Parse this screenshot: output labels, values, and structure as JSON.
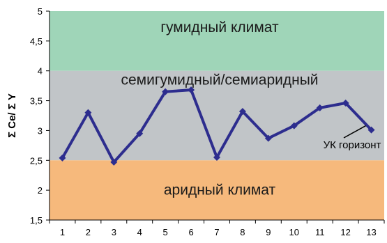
{
  "chart_data": {
    "type": "line",
    "ylabel": "Σ Ce/ Σ Y",
    "categories": [
      "1",
      "2",
      "3",
      "4",
      "5",
      "6",
      "7",
      "8",
      "9",
      "10",
      "11",
      "12",
      "13"
    ],
    "series": [
      {
        "values": [
          2.54,
          3.3,
          2.47,
          2.95,
          3.65,
          3.68,
          2.55,
          3.32,
          2.87,
          3.08,
          3.38,
          3.46,
          3.01
        ]
      }
    ],
    "ylim": [
      1.5,
      5
    ],
    "yticks": [
      "1,5",
      "2",
      "2,5",
      "3",
      "3,5",
      "4",
      "4,5",
      "5"
    ],
    "grid": false,
    "zones": [
      {
        "label": "гумидный климат",
        "from": 4.0,
        "to": 5.0,
        "color": "#9fd5b8"
      },
      {
        "label": "семигумидный/семиаридный",
        "from": 2.5,
        "to": 4.0,
        "color": "#c1c5c8"
      },
      {
        "label": "аридный климат",
        "from": 1.5,
        "to": 2.5,
        "color": "#f6b97c"
      }
    ],
    "annotation": {
      "text": "УК горизонт",
      "point_index": 12
    },
    "line_color": "#2d2d8e"
  }
}
